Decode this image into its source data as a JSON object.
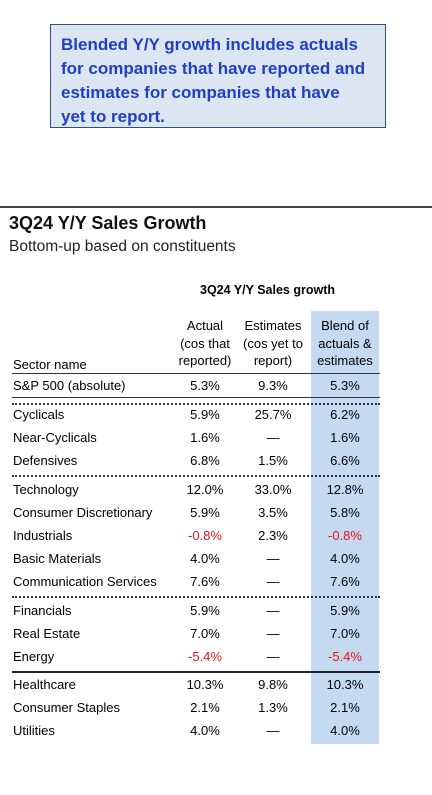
{
  "note": {
    "line1": "Blended Y/Y growth includes actuals",
    "line2": "for companies that have reported and",
    "line3": "estimates for companies that have",
    "line4": "yet to report."
  },
  "title": "3Q24 Y/Y Sales Growth",
  "subtitle": "Bottom-up based on constituents",
  "table_header": "3Q24 Y/Y Sales growth",
  "columns": {
    "sector": [
      "Sector name"
    ],
    "actual": [
      "Actual",
      "(cos that",
      "reported)"
    ],
    "estimates": [
      "Estimates",
      "(cos yet to",
      "report)"
    ],
    "blend": [
      "Blend of",
      "actuals &",
      "estimates"
    ]
  },
  "rows": [
    {
      "name": "S&P 500 (absolute)",
      "actual": "5.3%",
      "estimates": "9.3%",
      "blend": "5.3%"
    },
    {
      "name": "Cyclicals",
      "actual": "5.9%",
      "estimates": "25.7%",
      "blend": "6.2%"
    },
    {
      "name": "Near-Cyclicals",
      "actual": "1.6%",
      "estimates": "—",
      "blend": "1.6%"
    },
    {
      "name": "Defensives",
      "actual": "6.8%",
      "estimates": "1.5%",
      "blend": "6.6%"
    },
    {
      "name": "Technology",
      "actual": "12.0%",
      "estimates": "33.0%",
      "blend": "12.8%"
    },
    {
      "name": "Consumer Discretionary",
      "actual": "5.9%",
      "estimates": "3.5%",
      "blend": "5.8%"
    },
    {
      "name": "Industrials",
      "actual": "-0.8%",
      "estimates": "2.3%",
      "blend": "-0.8%"
    },
    {
      "name": "Basic Materials",
      "actual": "4.0%",
      "estimates": "—",
      "blend": "4.0%"
    },
    {
      "name": "Communication Services",
      "actual": "7.6%",
      "estimates": "—",
      "blend": "7.6%"
    },
    {
      "name": "Financials",
      "actual": "5.9%",
      "estimates": "—",
      "blend": "5.9%"
    },
    {
      "name": "Real Estate",
      "actual": "7.0%",
      "estimates": "—",
      "blend": "7.0%"
    },
    {
      "name": "Energy",
      "actual": "-5.4%",
      "estimates": "—",
      "blend": "-5.4%"
    },
    {
      "name": "Healthcare",
      "actual": "10.3%",
      "estimates": "9.8%",
      "blend": "10.3%"
    },
    {
      "name": "Consumer Staples",
      "actual": "2.1%",
      "estimates": "1.3%",
      "blend": "2.1%"
    },
    {
      "name": "Utilities",
      "actual": "4.0%",
      "estimates": "—",
      "blend": "4.0%"
    }
  ],
  "colors": {
    "note_text": "#1f3fc4",
    "note_background": "#dce6f2",
    "blend_column": "#c5d9f1",
    "negative": "#e8141a"
  }
}
